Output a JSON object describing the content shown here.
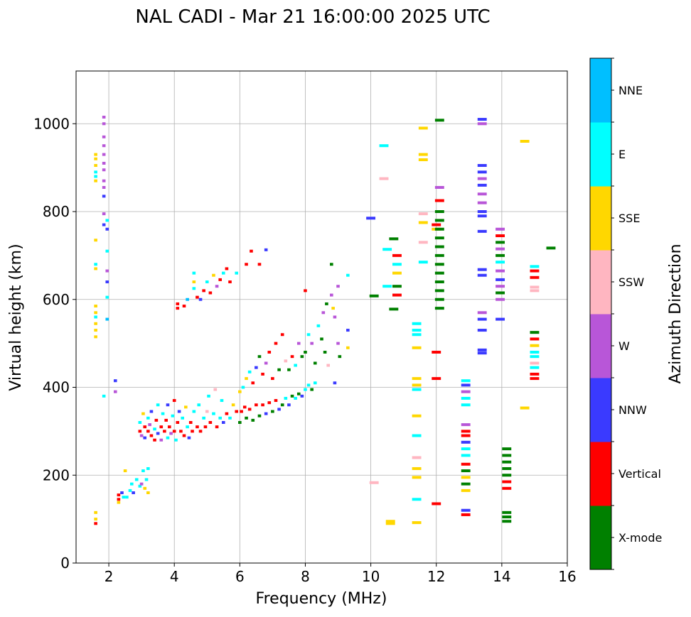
{
  "chart_data": {
    "type": "scatter",
    "title": "NAL CADI - Mar 21 16:00:00 2025 UTC",
    "xlabel": "Frequency (MHz)",
    "ylabel": "Virtual height (km)",
    "xlim": [
      1,
      16
    ],
    "ylim": [
      0,
      1120
    ],
    "xticks": [
      2,
      4,
      6,
      8,
      10,
      12,
      14,
      16
    ],
    "yticks": [
      0,
      200,
      400,
      600,
      800,
      1000
    ],
    "grid": true,
    "colorbar": {
      "label": "Azimuth Direction",
      "categories": [
        "X-mode",
        "Vertical",
        "NNW",
        "W",
        "SSW",
        "SSE",
        "E",
        "NNE"
      ],
      "colors": [
        "#008000",
        "#ff0000",
        "#3a3aff",
        "#b856d8",
        "#ffb6c1",
        "#ffd700",
        "#00ffff",
        "#00bfff"
      ]
    },
    "point_format": [
      "frequency_mhz",
      "virtual_height_km",
      "direction_index"
    ],
    "points": [
      [
        1.6,
        930,
        5
      ],
      [
        1.6,
        920,
        5
      ],
      [
        1.6,
        905,
        5
      ],
      [
        1.6,
        890,
        6
      ],
      [
        1.6,
        880,
        6
      ],
      [
        1.6,
        870,
        5
      ],
      [
        1.6,
        735,
        5
      ],
      [
        1.6,
        680,
        6
      ],
      [
        1.6,
        670,
        5
      ],
      [
        1.6,
        585,
        5
      ],
      [
        1.6,
        570,
        5
      ],
      [
        1.6,
        560,
        6
      ],
      [
        1.6,
        545,
        5
      ],
      [
        1.6,
        530,
        5
      ],
      [
        1.6,
        515,
        5
      ],
      [
        1.6,
        115,
        5
      ],
      [
        1.6,
        100,
        5
      ],
      [
        1.6,
        90,
        1
      ],
      [
        1.85,
        1015,
        3
      ],
      [
        1.85,
        1000,
        3
      ],
      [
        1.85,
        970,
        3
      ],
      [
        1.85,
        950,
        3
      ],
      [
        1.85,
        930,
        3
      ],
      [
        1.85,
        910,
        3
      ],
      [
        1.85,
        895,
        3
      ],
      [
        1.85,
        870,
        3
      ],
      [
        1.85,
        855,
        3
      ],
      [
        1.85,
        835,
        2
      ],
      [
        1.85,
        795,
        3
      ],
      [
        1.85,
        770,
        2
      ],
      [
        1.85,
        380,
        6
      ],
      [
        1.95,
        780,
        6
      ],
      [
        1.95,
        760,
        2
      ],
      [
        1.95,
        710,
        6
      ],
      [
        1.95,
        665,
        3
      ],
      [
        1.95,
        640,
        2
      ],
      [
        1.95,
        605,
        6
      ],
      [
        1.95,
        555,
        7
      ],
      [
        2.2,
        415,
        2
      ],
      [
        2.2,
        390,
        3
      ],
      [
        2.3,
        155,
        1
      ],
      [
        2.3,
        145,
        1
      ],
      [
        2.3,
        138,
        5
      ],
      [
        2.4,
        160,
        2
      ],
      [
        2.45,
        150,
        6
      ],
      [
        2.5,
        210,
        5
      ],
      [
        2.55,
        150,
        6
      ],
      [
        2.65,
        165,
        6
      ],
      [
        2.7,
        180,
        6
      ],
      [
        2.75,
        160,
        2
      ],
      [
        2.85,
        190,
        6
      ],
      [
        2.95,
        175,
        6
      ],
      [
        3.0,
        180,
        3
      ],
      [
        3.05,
        210,
        6
      ],
      [
        3.1,
        170,
        5
      ],
      [
        3.15,
        190,
        6
      ],
      [
        3.2,
        215,
        6
      ],
      [
        3.2,
        160,
        5
      ],
      [
        2.95,
        300,
        1
      ],
      [
        2.95,
        320,
        6
      ],
      [
        3.0,
        290,
        3
      ],
      [
        3.05,
        340,
        5
      ],
      [
        3.1,
        310,
        1
      ],
      [
        3.1,
        285,
        2
      ],
      [
        3.2,
        300,
        1
      ],
      [
        3.2,
        330,
        6
      ],
      [
        3.25,
        315,
        3
      ],
      [
        3.3,
        290,
        1
      ],
      [
        3.3,
        345,
        2
      ],
      [
        3.4,
        305,
        6
      ],
      [
        3.4,
        280,
        1
      ],
      [
        3.45,
        325,
        1
      ],
      [
        3.5,
        360,
        6
      ],
      [
        3.5,
        295,
        2
      ],
      [
        3.6,
        310,
        1
      ],
      [
        3.6,
        280,
        3
      ],
      [
        3.65,
        340,
        6
      ],
      [
        3.7,
        300,
        1
      ],
      [
        3.75,
        325,
        1
      ],
      [
        3.8,
        285,
        6
      ],
      [
        3.8,
        360,
        2
      ],
      [
        3.85,
        310,
        1
      ],
      [
        3.9,
        295,
        3
      ],
      [
        3.95,
        335,
        6
      ],
      [
        4.0,
        300,
        1
      ],
      [
        4.0,
        370,
        1
      ],
      [
        4.05,
        280,
        6
      ],
      [
        4.1,
        320,
        1
      ],
      [
        4.15,
        345,
        2
      ],
      [
        4.2,
        300,
        1
      ],
      [
        4.25,
        330,
        6
      ],
      [
        4.3,
        290,
        1
      ],
      [
        4.35,
        355,
        5
      ],
      [
        4.4,
        310,
        6
      ],
      [
        4.45,
        285,
        2
      ],
      [
        4.5,
        320,
        1
      ],
      [
        4.55,
        300,
        1
      ],
      [
        4.6,
        345,
        6
      ],
      [
        4.7,
        310,
        1
      ],
      [
        4.75,
        360,
        6
      ],
      [
        4.8,
        300,
        1
      ],
      [
        4.9,
        330,
        6
      ],
      [
        4.95,
        310,
        1
      ],
      [
        5.0,
        345,
        4
      ],
      [
        5.05,
        380,
        6
      ],
      [
        5.1,
        320,
        1
      ],
      [
        5.2,
        340,
        6
      ],
      [
        5.25,
        395,
        4
      ],
      [
        5.3,
        310,
        1
      ],
      [
        5.4,
        330,
        6
      ],
      [
        5.45,
        370,
        6
      ],
      [
        5.5,
        320,
        2
      ],
      [
        5.6,
        340,
        1
      ],
      [
        5.7,
        330,
        6
      ],
      [
        5.8,
        360,
        5
      ],
      [
        5.9,
        345,
        1
      ],
      [
        6.0,
        320,
        0
      ],
      [
        6.05,
        345,
        1
      ],
      [
        6.15,
        355,
        1
      ],
      [
        6.2,
        330,
        0
      ],
      [
        6.3,
        350,
        1
      ],
      [
        6.4,
        325,
        0
      ],
      [
        6.5,
        360,
        1
      ],
      [
        6.6,
        335,
        0
      ],
      [
        6.7,
        360,
        1
      ],
      [
        6.8,
        340,
        2
      ],
      [
        6.9,
        365,
        1
      ],
      [
        7.0,
        345,
        0
      ],
      [
        7.1,
        370,
        1
      ],
      [
        7.2,
        350,
        2
      ],
      [
        7.3,
        360,
        0
      ],
      [
        7.4,
        375,
        6
      ],
      [
        7.5,
        360,
        2
      ],
      [
        7.6,
        380,
        0
      ],
      [
        7.7,
        375,
        6
      ],
      [
        7.8,
        385,
        0
      ],
      [
        7.9,
        380,
        2
      ],
      [
        8.0,
        395,
        6
      ],
      [
        8.1,
        405,
        6
      ],
      [
        8.2,
        395,
        0
      ],
      [
        8.3,
        410,
        6
      ],
      [
        6.0,
        390,
        5
      ],
      [
        6.1,
        400,
        6
      ],
      [
        6.2,
        420,
        5
      ],
      [
        6.3,
        435,
        6
      ],
      [
        6.4,
        410,
        1
      ],
      [
        6.5,
        445,
        2
      ],
      [
        6.6,
        470,
        0
      ],
      [
        6.7,
        430,
        1
      ],
      [
        6.8,
        455,
        3
      ],
      [
        6.9,
        480,
        1
      ],
      [
        7.0,
        420,
        1
      ],
      [
        7.1,
        500,
        1
      ],
      [
        7.2,
        440,
        0
      ],
      [
        7.3,
        520,
        1
      ],
      [
        7.4,
        460,
        4
      ],
      [
        7.5,
        440,
        0
      ],
      [
        7.6,
        470,
        1
      ],
      [
        7.7,
        450,
        6
      ],
      [
        7.8,
        500,
        3
      ],
      [
        7.9,
        470,
        0
      ],
      [
        8.0,
        480,
        0
      ],
      [
        8.1,
        520,
        6
      ],
      [
        8.2,
        500,
        3
      ],
      [
        8.3,
        455,
        0
      ],
      [
        8.4,
        540,
        6
      ],
      [
        8.5,
        510,
        0
      ],
      [
        8.55,
        570,
        3
      ],
      [
        8.6,
        480,
        0
      ],
      [
        8.65,
        590,
        0
      ],
      [
        8.7,
        450,
        4
      ],
      [
        8.8,
        680,
        0
      ],
      [
        8.8,
        610,
        3
      ],
      [
        8.85,
        580,
        5
      ],
      [
        8.9,
        560,
        3
      ],
      [
        8.9,
        410,
        2
      ],
      [
        9.0,
        500,
        3
      ],
      [
        9.0,
        630,
        3
      ],
      [
        9.05,
        470,
        0
      ],
      [
        9.3,
        530,
        2
      ],
      [
        9.3,
        490,
        5
      ],
      [
        9.3,
        655,
        6
      ],
      [
        8.0,
        620,
        1
      ],
      [
        4.1,
        590,
        1
      ],
      [
        4.1,
        580,
        1
      ],
      [
        4.3,
        585,
        1
      ],
      [
        4.4,
        600,
        7
      ],
      [
        4.6,
        660,
        6
      ],
      [
        4.6,
        640,
        5
      ],
      [
        4.6,
        625,
        6
      ],
      [
        4.7,
        605,
        1
      ],
      [
        4.8,
        600,
        2
      ],
      [
        4.9,
        620,
        1
      ],
      [
        5.0,
        640,
        6
      ],
      [
        5.1,
        615,
        1
      ],
      [
        5.2,
        655,
        5
      ],
      [
        5.3,
        630,
        3
      ],
      [
        5.4,
        645,
        1
      ],
      [
        5.5,
        660,
        6
      ],
      [
        5.6,
        670,
        1
      ],
      [
        5.7,
        640,
        1
      ],
      [
        5.9,
        660,
        6
      ],
      [
        6.2,
        680,
        1
      ],
      [
        6.35,
        710,
        1
      ],
      [
        6.6,
        680,
        1
      ],
      [
        6.8,
        713,
        2
      ],
      [
        10.0,
        785,
        2
      ],
      [
        10.1,
        608,
        0
      ],
      [
        10.1,
        183,
        4
      ],
      [
        10.4,
        950,
        6
      ],
      [
        10.4,
        875,
        4
      ],
      [
        10.5,
        714,
        6
      ],
      [
        10.5,
        630,
        6
      ],
      [
        10.6,
        95,
        5
      ],
      [
        10.6,
        90,
        5
      ],
      [
        10.7,
        738,
        0
      ],
      [
        10.7,
        578,
        0
      ],
      [
        10.8,
        700,
        1
      ],
      [
        10.8,
        680,
        6
      ],
      [
        10.8,
        660,
        5
      ],
      [
        10.8,
        630,
        0
      ],
      [
        10.8,
        610,
        1
      ],
      [
        11.4,
        545,
        6
      ],
      [
        11.4,
        530,
        6
      ],
      [
        11.4,
        520,
        6
      ],
      [
        11.4,
        490,
        5
      ],
      [
        11.4,
        420,
        5
      ],
      [
        11.4,
        405,
        5
      ],
      [
        11.4,
        395,
        6
      ],
      [
        11.4,
        335,
        5
      ],
      [
        11.4,
        290,
        6
      ],
      [
        11.4,
        240,
        4
      ],
      [
        11.4,
        215,
        5
      ],
      [
        11.4,
        195,
        5
      ],
      [
        11.4,
        145,
        6
      ],
      [
        11.4,
        92,
        5
      ],
      [
        11.6,
        990,
        5
      ],
      [
        11.6,
        930,
        5
      ],
      [
        11.6,
        918,
        5
      ],
      [
        11.6,
        795,
        4
      ],
      [
        11.6,
        775,
        5
      ],
      [
        11.6,
        730,
        4
      ],
      [
        11.6,
        685,
        6
      ],
      [
        12.0,
        770,
        1
      ],
      [
        12.0,
        760,
        5
      ],
      [
        12.0,
        480,
        1
      ],
      [
        12.0,
        420,
        1
      ],
      [
        12.0,
        135,
        1
      ],
      [
        12.1,
        1008,
        0
      ],
      [
        12.1,
        855,
        3
      ],
      [
        12.1,
        825,
        1
      ],
      [
        12.1,
        800,
        0
      ],
      [
        12.1,
        780,
        0
      ],
      [
        12.1,
        760,
        0
      ],
      [
        12.1,
        740,
        0
      ],
      [
        12.1,
        720,
        0
      ],
      [
        12.1,
        700,
        0
      ],
      [
        12.1,
        680,
        0
      ],
      [
        12.1,
        660,
        0
      ],
      [
        12.1,
        640,
        0
      ],
      [
        12.1,
        620,
        0
      ],
      [
        12.1,
        600,
        0
      ],
      [
        12.1,
        580,
        0
      ],
      [
        12.9,
        415,
        6
      ],
      [
        12.9,
        405,
        2
      ],
      [
        12.9,
        390,
        3
      ],
      [
        12.9,
        375,
        6
      ],
      [
        12.9,
        360,
        6
      ],
      [
        12.9,
        315,
        3
      ],
      [
        12.9,
        300,
        1
      ],
      [
        12.9,
        290,
        1
      ],
      [
        12.9,
        275,
        2
      ],
      [
        12.9,
        260,
        6
      ],
      [
        12.9,
        245,
        6
      ],
      [
        12.9,
        225,
        1
      ],
      [
        12.9,
        210,
        0
      ],
      [
        12.9,
        195,
        5
      ],
      [
        12.9,
        180,
        0
      ],
      [
        12.9,
        165,
        5
      ],
      [
        12.9,
        120,
        2
      ],
      [
        12.9,
        110,
        1
      ],
      [
        13.4,
        1010,
        2
      ],
      [
        13.4,
        1000,
        3
      ],
      [
        13.4,
        905,
        2
      ],
      [
        13.4,
        890,
        2
      ],
      [
        13.4,
        875,
        3
      ],
      [
        13.4,
        860,
        2
      ],
      [
        13.4,
        840,
        3
      ],
      [
        13.4,
        820,
        3
      ],
      [
        13.4,
        800,
        2
      ],
      [
        13.4,
        790,
        2
      ],
      [
        13.4,
        755,
        2
      ],
      [
        13.4,
        668,
        2
      ],
      [
        13.4,
        655,
        2
      ],
      [
        13.4,
        570,
        3
      ],
      [
        13.4,
        555,
        2
      ],
      [
        13.4,
        530,
        2
      ],
      [
        13.4,
        485,
        2
      ],
      [
        13.4,
        478,
        2
      ],
      [
        13.95,
        760,
        3
      ],
      [
        13.95,
        745,
        1
      ],
      [
        13.95,
        730,
        0
      ],
      [
        13.95,
        715,
        3
      ],
      [
        13.95,
        700,
        0
      ],
      [
        13.95,
        685,
        6
      ],
      [
        13.95,
        665,
        3
      ],
      [
        13.95,
        645,
        2
      ],
      [
        13.95,
        630,
        3
      ],
      [
        13.95,
        615,
        0
      ],
      [
        13.95,
        600,
        3
      ],
      [
        13.95,
        555,
        2
      ],
      [
        14.15,
        260,
        0
      ],
      [
        14.15,
        245,
        0
      ],
      [
        14.15,
        230,
        0
      ],
      [
        14.15,
        215,
        0
      ],
      [
        14.15,
        200,
        0
      ],
      [
        14.15,
        185,
        1
      ],
      [
        14.15,
        170,
        1
      ],
      [
        14.15,
        115,
        0
      ],
      [
        14.15,
        105,
        0
      ],
      [
        14.15,
        95,
        0
      ],
      [
        14.7,
        960,
        5
      ],
      [
        14.7,
        353,
        5
      ],
      [
        15.0,
        675,
        6
      ],
      [
        15.0,
        665,
        1
      ],
      [
        15.0,
        650,
        1
      ],
      [
        15.0,
        628,
        4
      ],
      [
        15.0,
        620,
        4
      ],
      [
        15.0,
        525,
        0
      ],
      [
        15.0,
        510,
        1
      ],
      [
        15.0,
        495,
        5
      ],
      [
        15.0,
        480,
        6
      ],
      [
        15.0,
        470,
        6
      ],
      [
        15.0,
        455,
        4
      ],
      [
        15.0,
        445,
        6
      ],
      [
        15.0,
        430,
        1
      ],
      [
        15.0,
        420,
        1
      ],
      [
        15.5,
        717,
        0
      ]
    ]
  }
}
